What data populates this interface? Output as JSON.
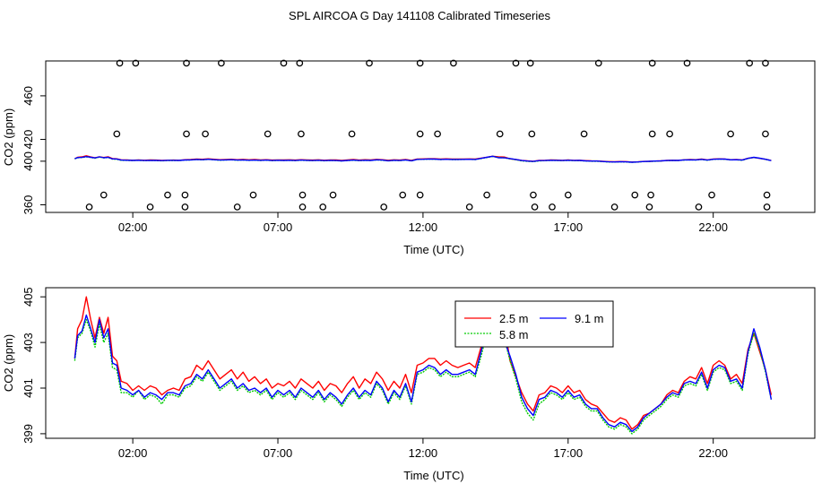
{
  "page_title": "SPL AIRCOA G  Day 141108  Calibrated Timeseries",
  "chart_data": [
    {
      "type": "scatter",
      "title": "",
      "xlabel": "Time (UTC)",
      "ylabel": "CO2 (ppm)",
      "x_unit": "hours UTC",
      "xlim": [
        -1.0,
        25.5
      ],
      "ylim": [
        353,
        492
      ],
      "x_ticks": [
        {
          "v": 2,
          "label": "02:00"
        },
        {
          "v": 7,
          "label": "07:00"
        },
        {
          "v": 12,
          "label": "12:00"
        },
        {
          "v": 17,
          "label": "17:00"
        },
        {
          "v": 22,
          "label": "22:00"
        }
      ],
      "y_ticks": [
        {
          "v": 360,
          "label": "360"
        },
        {
          "v": 400,
          "label": "400"
        },
        {
          "v": 420,
          "label": "420"
        },
        {
          "v": 460,
          "label": "460"
        }
      ],
      "flag_points": {
        "x": [
          1.55,
          2.1,
          3.85,
          5.05,
          7.2,
          7.75,
          10.15,
          11.9,
          13.05,
          15.2,
          15.7,
          18.05,
          19.9,
          21.1,
          23.25,
          23.8,
          1.45,
          3.85,
          4.5,
          6.65,
          7.8,
          9.55,
          11.9,
          12.5,
          14.65,
          15.75,
          17.55,
          19.9,
          20.5,
          22.6,
          23.8,
          1.0,
          3.2,
          3.8,
          6.15,
          7.85,
          8.9,
          11.3,
          11.9,
          14.2,
          15.8,
          17.0,
          19.3,
          19.85,
          21.95,
          23.85,
          0.5,
          2.6,
          3.8,
          5.6,
          7.85,
          8.55,
          10.65,
          13.6,
          15.85,
          16.45,
          18.6,
          19.8,
          21.5,
          23.85
        ],
        "y": [
          490,
          490,
          490,
          490,
          490,
          490,
          490,
          490,
          490,
          490,
          490,
          490,
          490,
          490,
          490,
          490,
          425,
          425,
          425,
          425,
          425,
          425,
          425,
          425,
          425,
          425,
          425,
          425,
          425,
          425,
          425,
          369,
          369,
          369,
          369,
          369,
          369,
          369,
          369,
          369,
          369,
          369,
          369,
          369,
          369,
          369,
          358,
          358,
          358,
          358,
          358,
          358,
          358,
          358,
          358,
          358,
          358,
          358,
          358,
          358
        ]
      },
      "series_ref": "lower_panel_series"
    },
    {
      "type": "line",
      "title": "",
      "xlabel": "Time (UTC)",
      "ylabel": "CO2 (ppm)",
      "x_unit": "hours UTC",
      "xlim": [
        -1.0,
        25.5
      ],
      "ylim": [
        398.8,
        405.4
      ],
      "x_ticks": [
        {
          "v": 2,
          "label": "02:00"
        },
        {
          "v": 7,
          "label": "07:00"
        },
        {
          "v": 12,
          "label": "12:00"
        },
        {
          "v": 17,
          "label": "17:00"
        },
        {
          "v": 22,
          "label": "22:00"
        }
      ],
      "y_ticks": [
        {
          "v": 399,
          "label": "399"
        },
        {
          "v": 401,
          "label": "401"
        },
        {
          "v": 403,
          "label": "403"
        },
        {
          "v": 405,
          "label": "405"
        }
      ],
      "legend": {
        "placement": "top-center"
      },
      "x": [
        0.0,
        0.1,
        0.25,
        0.4,
        0.55,
        0.7,
        0.85,
        1.0,
        1.15,
        1.3,
        1.45,
        1.6,
        1.8,
        2.0,
        2.2,
        2.4,
        2.6,
        2.8,
        3.0,
        3.2,
        3.4,
        3.6,
        3.8,
        4.0,
        4.2,
        4.4,
        4.6,
        4.8,
        5.0,
        5.2,
        5.4,
        5.6,
        5.8,
        6.0,
        6.2,
        6.4,
        6.6,
        6.8,
        7.0,
        7.2,
        7.4,
        7.6,
        7.8,
        8.0,
        8.2,
        8.4,
        8.6,
        8.8,
        9.0,
        9.2,
        9.4,
        9.6,
        9.8,
        10.0,
        10.2,
        10.4,
        10.6,
        10.8,
        11.0,
        11.2,
        11.4,
        11.6,
        11.8,
        12.0,
        12.2,
        12.4,
        12.6,
        12.8,
        13.0,
        13.2,
        13.4,
        13.6,
        13.8,
        14.0,
        14.2,
        14.4,
        14.6,
        14.8,
        15.0,
        15.2,
        15.4,
        15.6,
        15.8,
        16.0,
        16.2,
        16.4,
        16.6,
        16.8,
        17.0,
        17.2,
        17.4,
        17.6,
        17.8,
        18.0,
        18.2,
        18.4,
        18.6,
        18.8,
        19.0,
        19.2,
        19.4,
        19.6,
        19.8,
        20.0,
        20.2,
        20.4,
        20.6,
        20.8,
        21.0,
        21.2,
        21.4,
        21.6,
        21.8,
        22.0,
        22.2,
        22.4,
        22.6,
        22.8,
        23.0,
        23.2,
        23.4,
        23.6,
        23.8,
        24.0
      ],
      "series": [
        {
          "name": "2.5 m",
          "color": "#ff0000",
          "values": [
            402.3,
            403.6,
            404.0,
            405.0,
            404.0,
            403.2,
            404.1,
            403.4,
            404.1,
            402.4,
            402.2,
            401.3,
            401.2,
            400.9,
            401.1,
            400.9,
            401.1,
            401.0,
            400.7,
            400.9,
            401.0,
            400.9,
            401.4,
            401.5,
            402.0,
            401.8,
            402.2,
            401.8,
            401.4,
            401.6,
            401.8,
            401.4,
            401.7,
            401.3,
            401.5,
            401.2,
            401.4,
            401.0,
            401.2,
            401.1,
            401.3,
            401.0,
            401.4,
            401.2,
            401.0,
            401.3,
            400.9,
            401.2,
            401.1,
            400.8,
            401.2,
            401.5,
            401.0,
            401.4,
            401.2,
            401.7,
            401.4,
            400.9,
            401.3,
            401.0,
            401.6,
            400.8,
            402.0,
            402.1,
            402.3,
            402.3,
            402.0,
            402.2,
            402.0,
            401.9,
            402.0,
            402.1,
            401.9,
            402.8,
            403.6,
            404.6,
            404.0,
            403.8,
            402.2,
            401.5,
            400.8,
            400.3,
            400.0,
            400.7,
            400.8,
            401.1,
            401.0,
            400.8,
            401.1,
            400.8,
            400.9,
            400.5,
            400.3,
            400.2,
            399.9,
            399.6,
            399.5,
            399.7,
            399.6,
            399.2,
            399.4,
            399.8,
            399.9,
            400.1,
            400.3,
            400.7,
            400.9,
            400.8,
            401.3,
            401.5,
            401.4,
            401.9,
            401.2,
            402.0,
            402.2,
            402.0,
            401.4,
            401.6,
            401.2,
            402.7,
            403.4,
            402.6,
            401.8,
            400.7
          ]
        },
        {
          "name": "9.1 m",
          "color": "#0000ff",
          "values": [
            402.3,
            403.3,
            403.5,
            404.2,
            403.6,
            403.0,
            404.0,
            403.2,
            403.6,
            402.1,
            402.0,
            401.0,
            400.9,
            400.7,
            400.9,
            400.6,
            400.8,
            400.7,
            400.5,
            400.8,
            400.8,
            400.7,
            401.1,
            401.2,
            401.6,
            401.4,
            401.8,
            401.4,
            401.0,
            401.2,
            401.4,
            401.0,
            401.2,
            400.9,
            401.0,
            400.8,
            401.0,
            400.6,
            400.9,
            400.7,
            400.9,
            400.6,
            401.0,
            400.8,
            400.6,
            400.9,
            400.5,
            400.8,
            400.6,
            400.3,
            400.7,
            401.0,
            400.6,
            400.9,
            400.7,
            401.3,
            401.0,
            400.4,
            400.9,
            400.6,
            401.2,
            400.4,
            401.7,
            401.8,
            402.0,
            401.9,
            401.6,
            401.8,
            401.6,
            401.6,
            401.7,
            401.8,
            401.6,
            402.6,
            403.6,
            404.6,
            403.2,
            403.1,
            402.4,
            401.6,
            400.6,
            400.1,
            399.8,
            400.5,
            400.6,
            400.9,
            400.8,
            400.6,
            400.9,
            400.6,
            400.7,
            400.3,
            400.1,
            400.1,
            399.7,
            399.4,
            399.3,
            399.5,
            399.4,
            399.1,
            399.3,
            399.7,
            399.9,
            400.1,
            400.3,
            400.6,
            400.8,
            400.7,
            401.2,
            401.3,
            401.2,
            401.7,
            401.0,
            401.8,
            402.0,
            401.9,
            401.3,
            401.4,
            401.0,
            402.6,
            403.6,
            402.8,
            401.8,
            400.5
          ]
        },
        {
          "name": "5.8 m",
          "color": "#00cc00",
          "values": [
            402.2,
            403.2,
            403.4,
            404.0,
            403.5,
            402.8,
            403.8,
            403.0,
            403.4,
            401.9,
            401.8,
            400.8,
            400.8,
            400.6,
            400.9,
            400.5,
            400.7,
            400.6,
            400.3,
            400.7,
            400.7,
            400.6,
            401.0,
            401.1,
            401.5,
            401.3,
            401.7,
            401.3,
            400.9,
            401.1,
            401.3,
            400.9,
            401.1,
            400.8,
            400.9,
            400.7,
            400.9,
            400.5,
            400.8,
            400.6,
            400.8,
            400.5,
            400.9,
            400.7,
            400.5,
            400.8,
            400.4,
            400.7,
            400.5,
            400.2,
            400.6,
            400.9,
            400.5,
            400.8,
            400.6,
            401.2,
            400.9,
            400.3,
            400.8,
            400.5,
            401.1,
            400.3,
            401.6,
            401.7,
            401.9,
            401.8,
            401.5,
            401.7,
            401.5,
            401.5,
            401.6,
            401.7,
            401.5,
            402.4,
            403.4,
            404.4,
            403.4,
            403.2,
            402.2,
            401.4,
            400.4,
            399.9,
            399.6,
            400.3,
            400.5,
            400.8,
            400.7,
            400.5,
            400.8,
            400.5,
            400.6,
            400.2,
            400.0,
            400.0,
            399.6,
            399.3,
            399.2,
            399.4,
            399.3,
            399.0,
            399.2,
            399.6,
            399.8,
            400.0,
            400.2,
            400.5,
            400.7,
            400.6,
            401.1,
            401.2,
            401.1,
            401.6,
            400.9,
            401.7,
            401.9,
            401.8,
            401.2,
            401.3,
            400.9,
            402.5,
            403.4,
            402.7,
            401.7,
            400.5
          ]
        }
      ]
    }
  ]
}
